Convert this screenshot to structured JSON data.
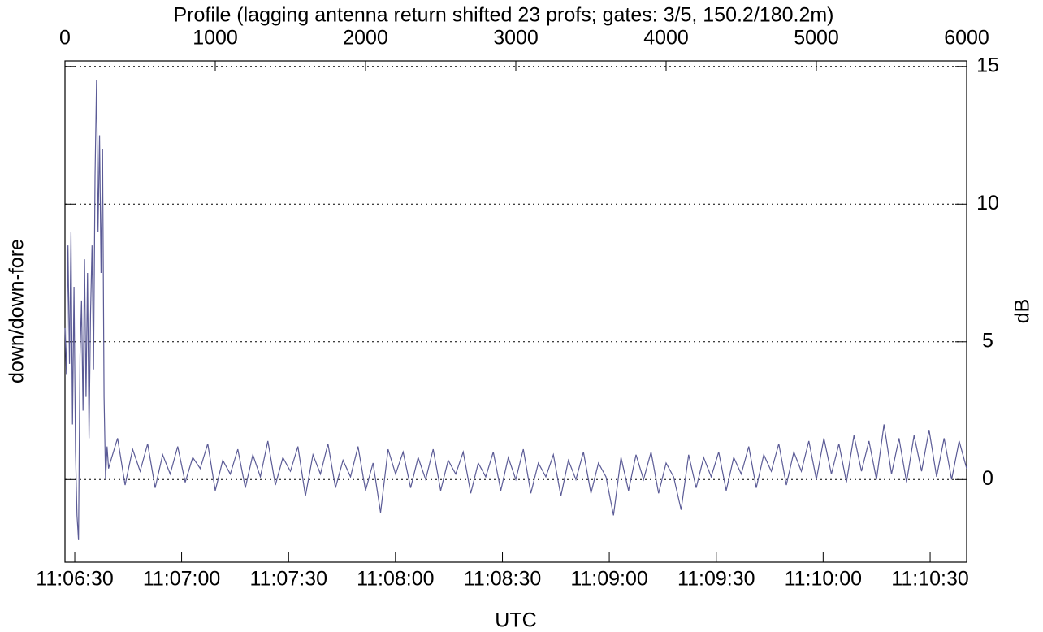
{
  "chart_data": {
    "type": "line",
    "title": "Profile (lagging antenna return shifted 23 profs; gates: 3/5, 150.2/180.2m)",
    "x_label": "UTC",
    "y_label": "down/down-fore",
    "y2_label": "dB",
    "x": [
      0,
      10,
      20,
      30,
      40,
      50,
      60,
      70,
      80,
      90,
      100,
      110,
      120,
      130,
      140,
      150,
      160,
      170,
      180,
      190,
      200,
      210,
      220,
      230,
      240,
      250,
      260,
      270,
      280,
      290,
      300,
      350,
      400,
      450,
      500,
      550,
      600,
      650,
      700,
      750,
      800,
      850,
      900,
      950,
      1000,
      1050,
      1100,
      1150,
      1200,
      1250,
      1300,
      1350,
      1400,
      1450,
      1500,
      1550,
      1600,
      1650,
      1700,
      1750,
      1800,
      1850,
      1900,
      1950,
      2000,
      2050,
      2100,
      2150,
      2200,
      2250,
      2300,
      2350,
      2400,
      2450,
      2500,
      2550,
      2600,
      2650,
      2700,
      2750,
      2800,
      2850,
      2900,
      2950,
      3000,
      3050,
      3100,
      3150,
      3200,
      3250,
      3300,
      3350,
      3400,
      3450,
      3500,
      3550,
      3600,
      3650,
      3700,
      3750,
      3800,
      3850,
      3900,
      3950,
      4000,
      4050,
      4100,
      4150,
      4200,
      4250,
      4300,
      4350,
      4400,
      4450,
      4500,
      4550,
      4600,
      4650,
      4700,
      4750,
      4800,
      4850,
      4900,
      4950,
      5000,
      5050,
      5100,
      5150,
      5200,
      5250,
      5300,
      5350,
      5400,
      5450,
      5500,
      5550,
      5600,
      5650,
      5700,
      5750,
      5800,
      5850,
      5900,
      5950,
      6000
    ],
    "series": [
      {
        "color": "#5b5b96",
        "values": [
          5.5,
          3.8,
          8.5,
          4.2,
          9.0,
          2.0,
          7.0,
          1.0,
          -1.3,
          -2.2,
          4.5,
          6.5,
          2.5,
          8.0,
          3.0,
          7.5,
          1.5,
          6.0,
          8.5,
          4.0,
          11.0,
          14.5,
          9.0,
          12.5,
          7.5,
          12.0,
          3.0,
          0.0,
          1.2,
          0.4,
          0.6,
          1.5,
          -0.2,
          1.1,
          0.3,
          1.3,
          -0.3,
          0.9,
          0.2,
          1.2,
          -0.1,
          0.8,
          0.4,
          1.3,
          -0.4,
          0.7,
          0.2,
          1.1,
          -0.3,
          0.9,
          0.1,
          1.4,
          -0.2,
          0.8,
          0.3,
          1.2,
          -0.6,
          0.9,
          0.2,
          1.3,
          -0.3,
          0.7,
          0.1,
          1.2,
          -0.4,
          0.6,
          -1.2,
          1.1,
          0.2,
          1.0,
          -0.3,
          0.8,
          0.0,
          1.1,
          -0.4,
          0.7,
          0.2,
          1.0,
          -0.5,
          0.6,
          0.1,
          1.0,
          -0.4,
          0.8,
          0.0,
          1.1,
          -0.5,
          0.6,
          0.1,
          0.9,
          -0.6,
          0.7,
          0.0,
          1.0,
          -0.5,
          0.6,
          0.1,
          -1.3,
          0.8,
          -0.4,
          0.9,
          0.0,
          1.0,
          -0.5,
          0.6,
          0.1,
          -1.1,
          0.9,
          -0.3,
          0.8,
          0.1,
          1.0,
          -0.4,
          0.8,
          0.2,
          1.2,
          -0.3,
          0.9,
          0.3,
          1.3,
          -0.2,
          1.0,
          0.3,
          1.4,
          0.0,
          1.5,
          0.2,
          1.3,
          -0.1,
          1.6,
          0.3,
          1.4,
          0.0,
          2.0,
          0.2,
          1.5,
          -0.1,
          1.6,
          0.3,
          1.8,
          0.1,
          1.5,
          0.0,
          1.4,
          0.4
        ]
      }
    ],
    "xlim": [
      0,
      6000
    ],
    "xticks": [
      0,
      1000,
      2000,
      3000,
      4000,
      5000,
      6000
    ],
    "x2ticks": [
      {
        "value": 65,
        "label": "11:06:30"
      },
      {
        "value": 776,
        "label": "11:07:00"
      },
      {
        "value": 1488,
        "label": "11:07:30"
      },
      {
        "value": 2199,
        "label": "11:08:00"
      },
      {
        "value": 2911,
        "label": "11:08:30"
      },
      {
        "value": 3622,
        "label": "11:09:00"
      },
      {
        "value": 4334,
        "label": "11:09:30"
      },
      {
        "value": 5045,
        "label": "11:10:00"
      },
      {
        "value": 5757,
        "label": "11:10:30"
      }
    ],
    "ylim": [
      -3,
      15.2
    ],
    "yticks": [
      0,
      5,
      10,
      15
    ],
    "grid": true
  }
}
